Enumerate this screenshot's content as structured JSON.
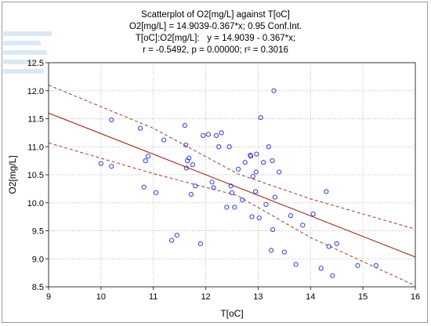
{
  "chart_data": {
    "type": "scatter",
    "title_lines": [
      "Scatterplot of O2[mg/L] against T[oC]",
      "O2[mg/L] = 14.9039-0.367*x; 0.95 Conf.Int.",
      "T[oC]:O2[mg/L]:   y = 14.9039 - 0.367*x;",
      "r = -0.5492, p = 0.00000; r² = 0.3016"
    ],
    "xlabel": "T[oC]",
    "ylabel": "O2[mg/L]",
    "xlim": [
      9,
      16
    ],
    "ylim": [
      8.5,
      12.5
    ],
    "xticks": [
      9,
      10,
      11,
      12,
      13,
      14,
      15,
      16
    ],
    "yticks": [
      8.5,
      9.0,
      9.5,
      10.0,
      10.5,
      11.0,
      11.5,
      12.0,
      12.5
    ],
    "grid": true,
    "regression": {
      "intercept": 14.9039,
      "slope": -0.367
    },
    "confidence_band": {
      "level": 0.95,
      "upper": [
        [
          9,
          12.1
        ],
        [
          11,
          11.33
        ],
        [
          12.6,
          10.52
        ],
        [
          14,
          10.07
        ],
        [
          16,
          9.53
        ]
      ],
      "lower": [
        [
          9,
          11.07
        ],
        [
          11,
          10.52
        ],
        [
          12.6,
          10.13
        ],
        [
          14,
          9.38
        ],
        [
          16,
          8.52
        ]
      ]
    },
    "points": [
      [
        10.0,
        10.7
      ],
      [
        10.2,
        10.65
      ],
      [
        10.2,
        11.48
      ],
      [
        10.75,
        11.33
      ],
      [
        10.82,
        10.28
      ],
      [
        10.85,
        10.75
      ],
      [
        10.9,
        10.83
      ],
      [
        11.05,
        10.18
      ],
      [
        11.2,
        11.12
      ],
      [
        11.35,
        9.33
      ],
      [
        11.45,
        9.42
      ],
      [
        11.6,
        11.38
      ],
      [
        11.62,
        11.03
      ],
      [
        11.63,
        10.62
      ],
      [
        11.65,
        10.75
      ],
      [
        11.68,
        10.8
      ],
      [
        11.72,
        10.15
      ],
      [
        11.75,
        10.68
      ],
      [
        11.8,
        10.3
      ],
      [
        11.9,
        9.27
      ],
      [
        11.95,
        11.2
      ],
      [
        12.05,
        11.22
      ],
      [
        12.12,
        10.37
      ],
      [
        12.15,
        10.27
      ],
      [
        12.2,
        11.2
      ],
      [
        12.25,
        11.0
      ],
      [
        12.3,
        11.25
      ],
      [
        12.4,
        9.92
      ],
      [
        12.45,
        11.0
      ],
      [
        12.48,
        10.3
      ],
      [
        12.5,
        10.18
      ],
      [
        12.55,
        9.92
      ],
      [
        12.62,
        10.6
      ],
      [
        12.7,
        10.05
      ],
      [
        12.75,
        10.72
      ],
      [
        12.85,
        10.85
      ],
      [
        12.86,
        10.83
      ],
      [
        12.88,
        9.75
      ],
      [
        12.9,
        10.47
      ],
      [
        12.95,
        10.2
      ],
      [
        12.96,
        10.55
      ],
      [
        12.97,
        10.87
      ],
      [
        13.02,
        9.73
      ],
      [
        13.05,
        11.52
      ],
      [
        13.1,
        10.72
      ],
      [
        13.15,
        9.97
      ],
      [
        13.2,
        11.0
      ],
      [
        13.25,
        9.15
      ],
      [
        13.27,
        10.75
      ],
      [
        13.28,
        9.52
      ],
      [
        13.3,
        12.0
      ],
      [
        13.32,
        10.1
      ],
      [
        13.4,
        10.55
      ],
      [
        13.5,
        9.12
      ],
      [
        13.62,
        9.77
      ],
      [
        13.72,
        8.9
      ],
      [
        13.85,
        9.6
      ],
      [
        14.05,
        9.8
      ],
      [
        14.2,
        8.83
      ],
      [
        14.3,
        10.2
      ],
      [
        14.35,
        9.22
      ],
      [
        14.42,
        8.7
      ],
      [
        14.5,
        9.27
      ],
      [
        14.9,
        8.88
      ],
      [
        15.25,
        8.88
      ]
    ],
    "colors": {
      "points": "#3a3ad6",
      "regression": "#a23a2a",
      "band": "#a23a2a",
      "grid": "#b8b8b8"
    }
  }
}
